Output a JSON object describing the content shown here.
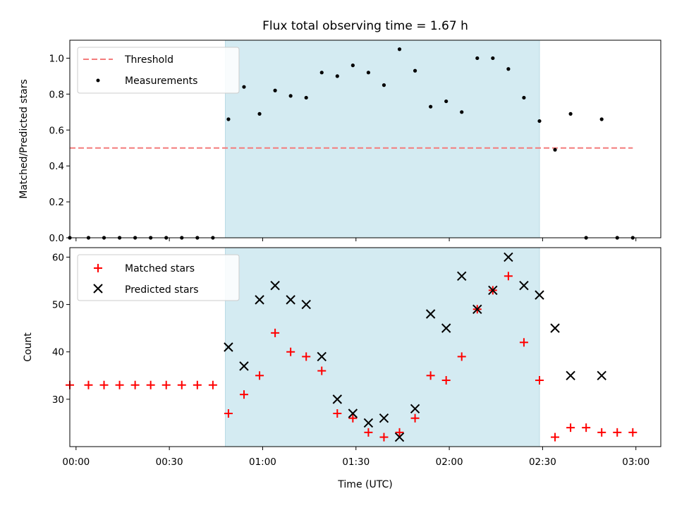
{
  "chart_data": [
    {
      "type": "scatter",
      "title": "Flux total observing time = 1.67 h",
      "xlabel": "",
      "ylabel": "Matched/Predicted stars",
      "xlim": [
        "23:58",
        "03:08"
      ],
      "ylim": [
        0,
        1.1
      ],
      "yticks": [
        "0.0",
        "0.2",
        "0.4",
        "0.6",
        "0.8",
        "1.0"
      ],
      "shaded_region": {
        "x_start": "00:48",
        "x_end": "02:29",
        "color": "#d4ebf2"
      },
      "legend_position": "upper left",
      "series": [
        {
          "name": "Threshold",
          "style": "dashed-line",
          "color": "#f47c7c",
          "x": [
            "23:58",
            "02:59"
          ],
          "y": [
            0.5,
            0.5
          ]
        },
        {
          "name": "Measurements",
          "style": "dot",
          "color": "#000000",
          "x": [
            "23:58",
            "00:04",
            "00:09",
            "00:14",
            "00:19",
            "00:24",
            "00:29",
            "00:34",
            "00:39",
            "00:44",
            "00:49",
            "00:54",
            "00:59",
            "01:04",
            "01:09",
            "01:14",
            "01:19",
            "01:24",
            "01:29",
            "01:34",
            "01:39",
            "01:44",
            "01:49",
            "01:54",
            "01:59",
            "02:04",
            "02:09",
            "02:14",
            "02:19",
            "02:24",
            "02:29",
            "02:34",
            "02:39",
            "02:44",
            "02:49",
            "02:54",
            "02:59"
          ],
          "y": [
            0,
            0,
            0,
            0,
            0,
            0,
            0,
            0,
            0,
            0,
            0.66,
            0.84,
            0.69,
            0.82,
            0.79,
            0.78,
            0.92,
            0.9,
            0.96,
            0.92,
            0.85,
            1.05,
            0.93,
            0.73,
            0.76,
            0.7,
            1.0,
            1.0,
            0.94,
            0.78,
            0.65,
            0.49,
            0.69,
            0,
            0.66,
            0,
            0
          ]
        }
      ]
    },
    {
      "type": "scatter",
      "xlabel": "Time (UTC)",
      "ylabel": "Count",
      "xlim": [
        "23:58",
        "03:08"
      ],
      "ylim": [
        20,
        62
      ],
      "yticks": [
        "30",
        "40",
        "50",
        "60"
      ],
      "xticks": [
        "00:00",
        "00:30",
        "01:00",
        "01:30",
        "02:00",
        "02:30",
        "03:00"
      ],
      "shaded_region": {
        "x_start": "00:48",
        "x_end": "02:29",
        "color": "#d4ebf2"
      },
      "legend_position": "upper left",
      "series": [
        {
          "name": "Matched stars",
          "style": "plus",
          "color": "#ff0000",
          "x": [
            "23:58",
            "00:04",
            "00:09",
            "00:14",
            "00:19",
            "00:24",
            "00:29",
            "00:34",
            "00:39",
            "00:44",
            "00:49",
            "00:54",
            "00:59",
            "01:04",
            "01:09",
            "01:14",
            "01:19",
            "01:24",
            "01:29",
            "01:34",
            "01:39",
            "01:44",
            "01:49",
            "01:54",
            "01:59",
            "02:04",
            "02:09",
            "02:14",
            "02:19",
            "02:24",
            "02:29",
            "02:34",
            "02:39",
            "02:44",
            "02:49",
            "02:54",
            "02:59"
          ],
          "y": [
            33,
            33,
            33,
            33,
            33,
            33,
            33,
            33,
            33,
            33,
            27,
            31,
            35,
            44,
            40,
            39,
            36,
            27,
            26,
            23,
            22,
            23,
            26,
            35,
            34,
            39,
            49,
            53,
            56,
            42,
            34,
            22,
            24,
            24,
            23,
            23,
            23
          ]
        },
        {
          "name": "Predicted stars",
          "style": "x",
          "color": "#000000",
          "x": [
            "00:49",
            "00:54",
            "00:59",
            "01:04",
            "01:09",
            "01:14",
            "01:19",
            "01:24",
            "01:29",
            "01:34",
            "01:39",
            "01:44",
            "01:49",
            "01:54",
            "01:59",
            "02:04",
            "02:09",
            "02:14",
            "02:19",
            "02:24",
            "02:29",
            "02:34",
            "02:39",
            "02:49"
          ],
          "y": [
            41,
            37,
            51,
            54,
            51,
            50,
            39,
            30,
            27,
            25,
            26,
            22,
            28,
            48,
            45,
            56,
            49,
            53,
            60,
            54,
            52,
            45,
            35,
            35
          ]
        }
      ]
    }
  ]
}
